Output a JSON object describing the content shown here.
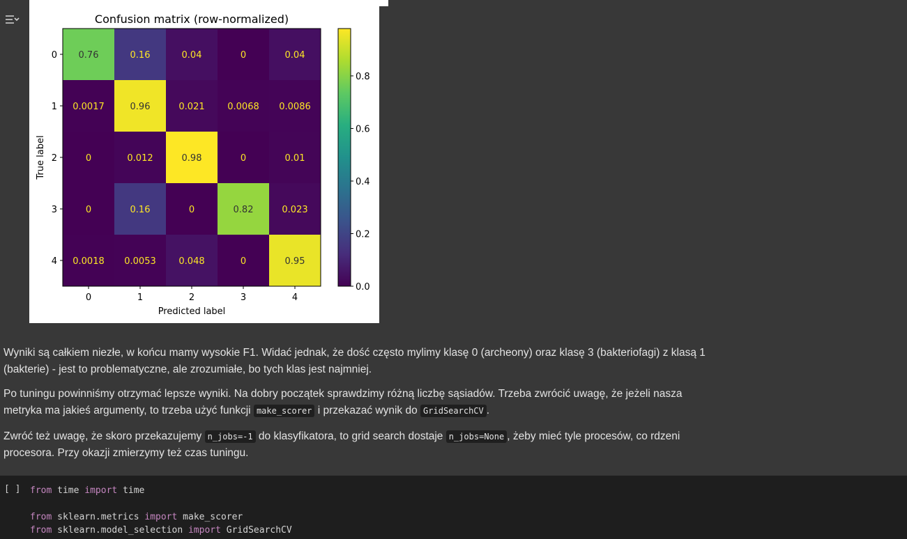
{
  "output": {
    "gutter_icon": "output-collapse-icon"
  },
  "chart_data": {
    "type": "heatmap",
    "title": "Confusion matrix (row-normalized)",
    "xlabel": "Predicted label",
    "ylabel": "True label",
    "x_categories": [
      "0",
      "1",
      "2",
      "3",
      "4"
    ],
    "y_categories": [
      "0",
      "1",
      "2",
      "3",
      "4"
    ],
    "values": [
      [
        0.76,
        0.16,
        0.04,
        0,
        0.04
      ],
      [
        0.0017,
        0.96,
        0.021,
        0.0068,
        0.0086
      ],
      [
        0,
        0.012,
        0.98,
        0,
        0.01
      ],
      [
        0,
        0.16,
        0,
        0.82,
        0.023
      ],
      [
        0.0018,
        0.0053,
        0.048,
        0,
        0.95
      ]
    ],
    "value_labels": [
      [
        "0.76",
        "0.16",
        "0.04",
        "0",
        "0.04"
      ],
      [
        "0.0017",
        "0.96",
        "0.021",
        "0.0068",
        "0.0086"
      ],
      [
        "0",
        "0.012",
        "0.98",
        "0",
        "0.01"
      ],
      [
        "0",
        "0.16",
        "0",
        "0.82",
        "0.023"
      ],
      [
        "0.0018",
        "0.0053",
        "0.048",
        "0",
        "0.95"
      ]
    ],
    "colormap": "viridis",
    "colorbar": {
      "range": [
        0,
        0.98
      ],
      "ticks": [
        0.0,
        0.2,
        0.4,
        0.6,
        0.8
      ],
      "tick_labels": [
        "0.0",
        "0.2",
        "0.4",
        "0.6",
        "0.8"
      ]
    }
  },
  "markdown": {
    "p1": "Wyniki są całkiem niezłe, w końcu mamy wysokie F1. Widać jednak, że dość często mylimy klasę 0 (archeony) oraz klasę 3 (bakteriofagi) z klasą 1 (bakterie) - jest to problematyczne, ale zrozumiałe, bo tych klas jest najmniej.",
    "p2_a": "Po tuningu powinniśmy otrzymać lepsze wyniki. Na dobry początek sprawdzimy różną liczbę sąsiadów. Trzeba zwrócić uwagę, że jeżeli nasza metryka ma jakieś argumenty, to trzeba użyć funkcji ",
    "p2_code1": "make_scorer",
    "p2_b": " i przekazać wynik do ",
    "p2_code2": "GridSearchCV",
    "p2_c": ".",
    "p3_a": "Zwróć też uwagę, że skoro przekazujemy ",
    "p3_code1": "n_jobs=-1",
    "p3_b": " do klasyfikatora, to grid search dostaje ",
    "p3_code2": "n_jobs=None",
    "p3_c": ", żeby mieć tyle procesów, co rdzeni procesora. Przy okazji zmierzymy też czas tuningu."
  },
  "code_cell": {
    "run_label": "[ ]",
    "lines": [
      [
        [
          "kw",
          "from"
        ],
        [
          "",
          " time "
        ],
        [
          "kw",
          "import"
        ],
        [
          "",
          " time"
        ]
      ],
      [],
      [
        [
          "kw",
          "from"
        ],
        [
          "",
          " sklearn.metrics "
        ],
        [
          "kw",
          "import"
        ],
        [
          "",
          " make_scorer"
        ]
      ],
      [
        [
          "kw",
          "from"
        ],
        [
          "",
          " sklearn.model_selection "
        ],
        [
          "kw",
          "import"
        ],
        [
          "",
          " GridSearchCV"
        ]
      ]
    ]
  }
}
